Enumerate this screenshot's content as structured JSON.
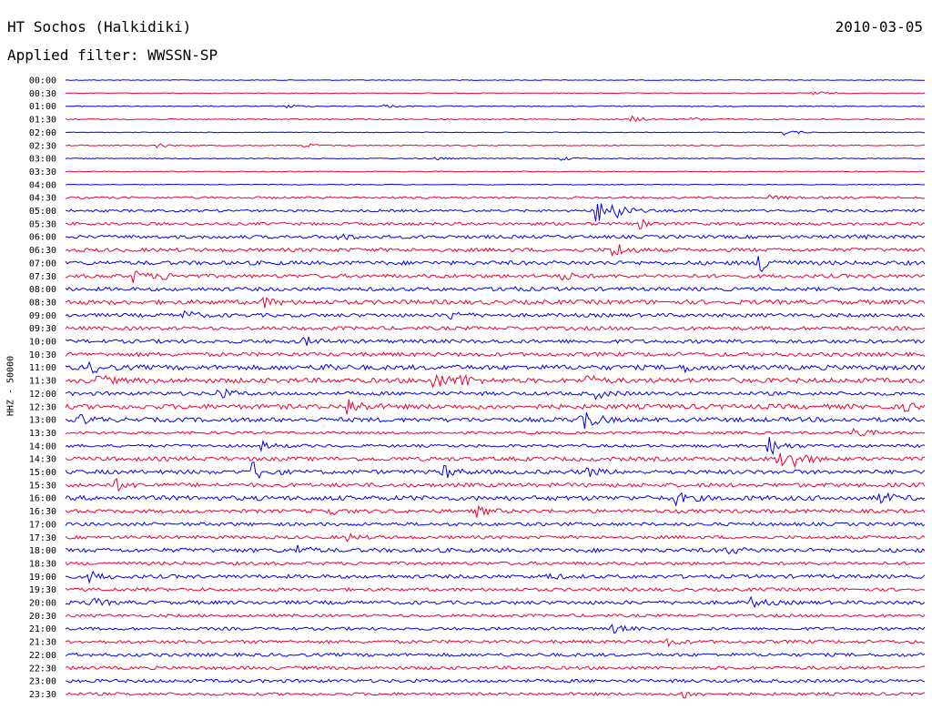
{
  "header": {
    "title": "HT Sochos (Halkidiki)",
    "date": "2010-03-05",
    "filter": "Applied filter: WWSSN-SP"
  },
  "axis": {
    "side_label": "HHZ - 50000"
  },
  "colors": {
    "odd_trace": "#0000ee",
    "even_trace": "#ee0033",
    "background": "#ffffff"
  },
  "chart_data": {
    "type": "line",
    "title": "HT Sochos (Halkidiki)",
    "subtitle": "Applied filter: WWSSN-SP",
    "xlabel": "",
    "ylabel": "HHZ - 50000",
    "x_range_minutes": [
      0,
      30
    ],
    "grid": false,
    "series_note": "helicorder traces alternating blue/red",
    "rows": [
      {
        "label": "00:00",
        "color": "blue",
        "amp": 0.4,
        "events": []
      },
      {
        "label": "00:30",
        "color": "red",
        "amp": 0.4,
        "events": [
          {
            "at": 0.87,
            "size": 3
          }
        ]
      },
      {
        "label": "01:00",
        "color": "blue",
        "amp": 0.5,
        "events": [
          {
            "at": 0.26,
            "size": 2
          },
          {
            "at": 0.37,
            "size": 2
          }
        ]
      },
      {
        "label": "01:30",
        "color": "red",
        "amp": 0.6,
        "events": [
          {
            "at": 0.66,
            "size": 3
          },
          {
            "at": 0.73,
            "size": 2
          }
        ]
      },
      {
        "label": "02:00",
        "color": "blue",
        "amp": 0.4,
        "events": [
          {
            "at": 0.84,
            "size": 3
          }
        ]
      },
      {
        "label": "02:30",
        "color": "red",
        "amp": 0.6,
        "events": [
          {
            "at": 0.11,
            "size": 2
          },
          {
            "at": 0.28,
            "size": 2
          }
        ]
      },
      {
        "label": "03:00",
        "color": "blue",
        "amp": 0.5,
        "events": [
          {
            "at": 0.43,
            "size": 2
          },
          {
            "at": 0.58,
            "size": 2
          }
        ]
      },
      {
        "label": "03:30",
        "color": "red",
        "amp": 0.5,
        "events": []
      },
      {
        "label": "04:00",
        "color": "blue",
        "amp": 0.4,
        "events": []
      },
      {
        "label": "04:30",
        "color": "red",
        "amp": 1.2,
        "events": [
          {
            "at": 0.82,
            "size": 2
          }
        ]
      },
      {
        "label": "05:00",
        "color": "blue",
        "amp": 1.3,
        "events": [
          {
            "at": 0.62,
            "size": 12
          },
          {
            "at": 0.64,
            "size": 9
          }
        ]
      },
      {
        "label": "05:30",
        "color": "red",
        "amp": 1.6,
        "events": [
          {
            "at": 0.67,
            "size": 4
          }
        ]
      },
      {
        "label": "06:00",
        "color": "blue",
        "amp": 1.8,
        "events": [
          {
            "at": 0.32,
            "size": 3
          },
          {
            "at": 0.92,
            "size": 2
          }
        ]
      },
      {
        "label": "06:30",
        "color": "red",
        "amp": 2.0,
        "events": [
          {
            "at": 0.64,
            "size": 8
          }
        ]
      },
      {
        "label": "07:00",
        "color": "blue",
        "amp": 2.2,
        "events": [
          {
            "at": 0.81,
            "size": 11
          }
        ]
      },
      {
        "label": "07:30",
        "color": "red",
        "amp": 2.0,
        "events": [
          {
            "at": 0.08,
            "size": 6
          },
          {
            "at": 0.11,
            "size": 4
          },
          {
            "at": 0.58,
            "size": 4
          }
        ]
      },
      {
        "label": "08:00",
        "color": "blue",
        "amp": 2.0,
        "events": [
          {
            "at": 0.51,
            "size": 3
          }
        ]
      },
      {
        "label": "08:30",
        "color": "red",
        "amp": 2.4,
        "events": [
          {
            "at": 0.23,
            "size": 5
          }
        ]
      },
      {
        "label": "09:00",
        "color": "blue",
        "amp": 2.0,
        "events": [
          {
            "at": 0.14,
            "size": 4
          },
          {
            "at": 0.45,
            "size": 4
          }
        ]
      },
      {
        "label": "09:30",
        "color": "red",
        "amp": 2.0,
        "events": []
      },
      {
        "label": "10:00",
        "color": "blue",
        "amp": 2.0,
        "events": [
          {
            "at": 0.28,
            "size": 4
          }
        ]
      },
      {
        "label": "10:30",
        "color": "red",
        "amp": 2.2,
        "events": []
      },
      {
        "label": "11:00",
        "color": "blue",
        "amp": 2.6,
        "events": [
          {
            "at": 0.03,
            "size": 5
          },
          {
            "at": 0.3,
            "size": 4
          },
          {
            "at": 0.72,
            "size": 4
          }
        ]
      },
      {
        "label": "11:30",
        "color": "red",
        "amp": 2.6,
        "events": [
          {
            "at": 0.04,
            "size": 5
          },
          {
            "at": 0.43,
            "size": 9
          },
          {
            "at": 0.46,
            "size": 7
          },
          {
            "at": 0.61,
            "size": 4
          }
        ]
      },
      {
        "label": "12:00",
        "color": "blue",
        "amp": 2.0,
        "events": [
          {
            "at": 0.18,
            "size": 5
          },
          {
            "at": 0.62,
            "size": 4
          }
        ]
      },
      {
        "label": "12:30",
        "color": "red",
        "amp": 2.6,
        "events": [
          {
            "at": 0.33,
            "size": 9
          },
          {
            "at": 0.98,
            "size": 3
          }
        ]
      },
      {
        "label": "13:00",
        "color": "blue",
        "amp": 2.4,
        "events": [
          {
            "at": 0.6,
            "size": 15
          },
          {
            "at": 0.02,
            "size": 4
          }
        ]
      },
      {
        "label": "13:30",
        "color": "red",
        "amp": 1.4,
        "events": [
          {
            "at": 0.92,
            "size": 7
          }
        ]
      },
      {
        "label": "14:00",
        "color": "blue",
        "amp": 1.6,
        "events": [
          {
            "at": 0.23,
            "size": 4
          },
          {
            "at": 0.82,
            "size": 10
          }
        ]
      },
      {
        "label": "14:30",
        "color": "red",
        "amp": 2.2,
        "events": [
          {
            "at": 0.83,
            "size": 10
          },
          {
            "at": 0.85,
            "size": 7
          }
        ]
      },
      {
        "label": "15:00",
        "color": "blue",
        "amp": 2.2,
        "events": [
          {
            "at": 0.22,
            "size": 9
          },
          {
            "at": 0.44,
            "size": 7
          },
          {
            "at": 0.61,
            "size": 4
          }
        ]
      },
      {
        "label": "15:30",
        "color": "red",
        "amp": 2.2,
        "events": [
          {
            "at": 0.06,
            "size": 5
          }
        ]
      },
      {
        "label": "16:00",
        "color": "blue",
        "amp": 2.6,
        "events": [
          {
            "at": 0.71,
            "size": 6
          },
          {
            "at": 0.95,
            "size": 5
          }
        ]
      },
      {
        "label": "16:30",
        "color": "red",
        "amp": 2.0,
        "events": [
          {
            "at": 0.3,
            "size": 6
          },
          {
            "at": 0.48,
            "size": 5
          }
        ]
      },
      {
        "label": "17:00",
        "color": "blue",
        "amp": 1.8,
        "events": []
      },
      {
        "label": "17:30",
        "color": "red",
        "amp": 1.8,
        "events": [
          {
            "at": 0.33,
            "size": 3
          }
        ]
      },
      {
        "label": "18:00",
        "color": "blue",
        "amp": 2.2,
        "events": [
          {
            "at": 0.27,
            "size": 5
          },
          {
            "at": 0.77,
            "size": 4
          }
        ]
      },
      {
        "label": "18:30",
        "color": "red",
        "amp": 1.8,
        "events": []
      },
      {
        "label": "19:00",
        "color": "blue",
        "amp": 2.0,
        "events": [
          {
            "at": 0.03,
            "size": 5
          },
          {
            "at": 0.56,
            "size": 3
          }
        ]
      },
      {
        "label": "19:30",
        "color": "red",
        "amp": 1.8,
        "events": []
      },
      {
        "label": "20:00",
        "color": "blue",
        "amp": 2.0,
        "events": [
          {
            "at": 0.03,
            "size": 5
          },
          {
            "at": 0.8,
            "size": 5
          }
        ]
      },
      {
        "label": "20:30",
        "color": "red",
        "amp": 1.6,
        "events": []
      },
      {
        "label": "21:00",
        "color": "blue",
        "amp": 1.6,
        "events": [
          {
            "at": 0.64,
            "size": 4
          }
        ]
      },
      {
        "label": "21:30",
        "color": "red",
        "amp": 1.8,
        "events": [
          {
            "at": 0.7,
            "size": 4
          }
        ]
      },
      {
        "label": "22:00",
        "color": "blue",
        "amp": 1.8,
        "events": []
      },
      {
        "label": "22:30",
        "color": "red",
        "amp": 1.8,
        "events": []
      },
      {
        "label": "23:00",
        "color": "blue",
        "amp": 1.8,
        "events": []
      },
      {
        "label": "23:30",
        "color": "red",
        "amp": 1.6,
        "events": [
          {
            "at": 0.72,
            "size": 4
          }
        ]
      }
    ]
  }
}
